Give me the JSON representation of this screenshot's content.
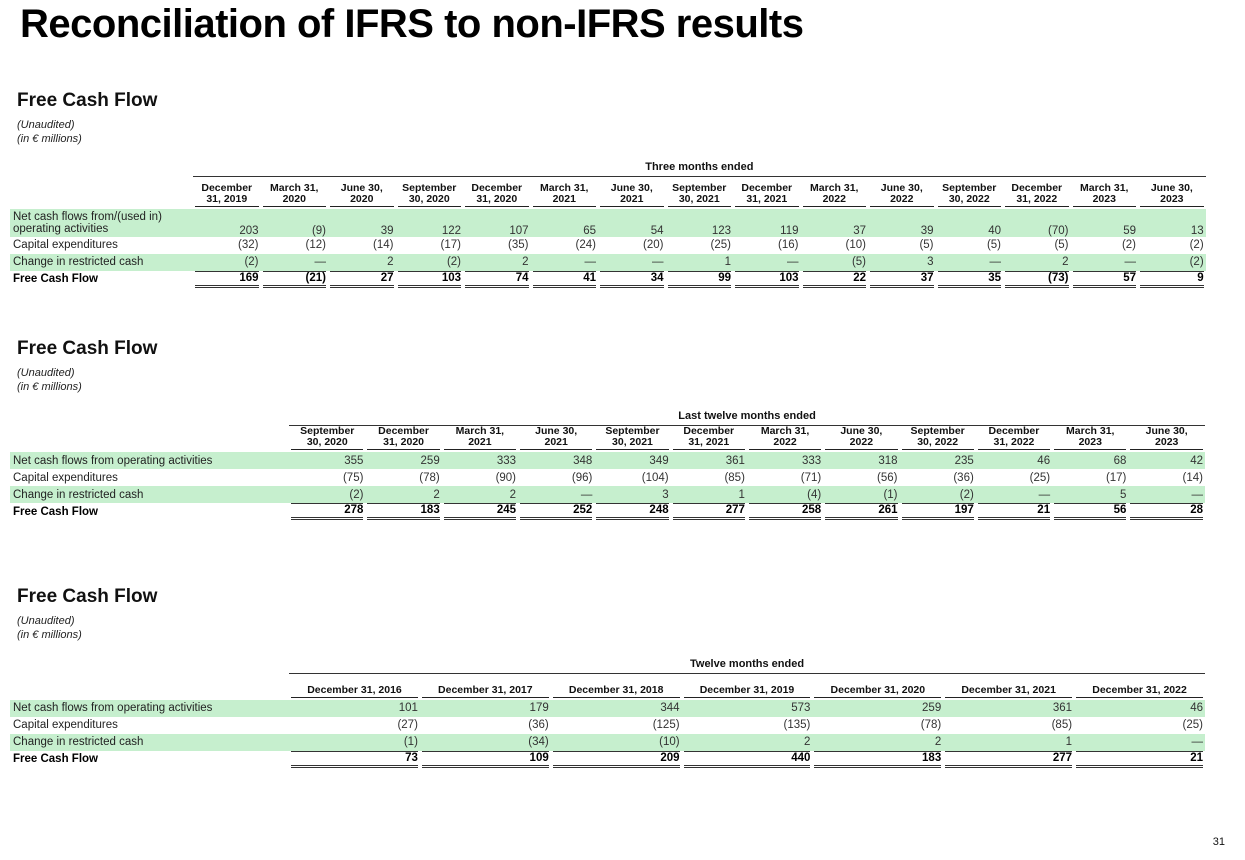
{
  "page_title": "Reconciliation of IFRS to non-IFRS results",
  "page_number": "31",
  "row_labels": [
    "Net cash flows from/(used in) operating activities",
    "Capital expenditures",
    "Change in restricted cash",
    "Free Cash Flow"
  ],
  "sections": [
    {
      "title": "Free Cash Flow",
      "sub1": "(Unaudited)",
      "sub2": "(in € millions)",
      "period_label": "Three months ended",
      "columns": [
        [
          "December",
          "31, 2019"
        ],
        [
          "March 31,",
          "2020"
        ],
        [
          "June 30,",
          "2020"
        ],
        [
          "September",
          "30, 2020"
        ],
        [
          "December",
          "31, 2020"
        ],
        [
          "March 31,",
          "2021"
        ],
        [
          "June 30,",
          "2021"
        ],
        [
          "September",
          "30, 2021"
        ],
        [
          "December",
          "31, 2021"
        ],
        [
          "March 31,",
          "2022"
        ],
        [
          "June 30,",
          "2022"
        ],
        [
          "September",
          "30, 2022"
        ],
        [
          "December",
          "31, 2022"
        ],
        [
          "March 31,",
          "2023"
        ],
        [
          "June 30,",
          "2023"
        ]
      ],
      "rows": [
        {
          "label": "Net cash flows from/(used in) operating activities",
          "values": [
            "203",
            "(9)",
            "39",
            "122",
            "107",
            "65",
            "54",
            "123",
            "119",
            "37",
            "39",
            "40",
            "(70)",
            "59",
            "13"
          ]
        },
        {
          "label": "Capital expenditures",
          "values": [
            "(32)",
            "(12)",
            "(14)",
            "(17)",
            "(35)",
            "(24)",
            "(20)",
            "(25)",
            "(16)",
            "(10)",
            "(5)",
            "(5)",
            "(5)",
            "(2)",
            "(2)"
          ]
        },
        {
          "label": "Change in restricted cash",
          "values": [
            "(2)",
            "—",
            "2",
            "(2)",
            "2",
            "—",
            "—",
            "1",
            "—",
            "(5)",
            "3",
            "—",
            "2",
            "—",
            "(2)"
          ]
        },
        {
          "label": "Free Cash Flow",
          "values": [
            "169",
            "(21)",
            "27",
            "103",
            "74",
            "41",
            "34",
            "99",
            "103",
            "22",
            "37",
            "35",
            "(73)",
            "57",
            "9"
          ]
        }
      ]
    },
    {
      "title": "Free Cash Flow",
      "sub1": "(Unaudited)",
      "sub2": "(in € millions)",
      "period_label": "Last twelve months ended",
      "columns": [
        [
          "September",
          "30, 2020"
        ],
        [
          "December",
          "31, 2020"
        ],
        [
          "March 31,",
          "2021"
        ],
        [
          "June 30,",
          "2021"
        ],
        [
          "September",
          "30, 2021"
        ],
        [
          "December",
          "31, 2021"
        ],
        [
          "March 31,",
          "2022"
        ],
        [
          "June 30,",
          "2022"
        ],
        [
          "September",
          "30, 2022"
        ],
        [
          "December",
          "31, 2022"
        ],
        [
          "March 31,",
          "2023"
        ],
        [
          "June 30,",
          "2023"
        ]
      ],
      "rows": [
        {
          "label": "Net cash flows from operating activities",
          "values": [
            "355",
            "259",
            "333",
            "348",
            "349",
            "361",
            "333",
            "318",
            "235",
            "46",
            "68",
            "42"
          ]
        },
        {
          "label": "Capital expenditures",
          "values": [
            "(75)",
            "(78)",
            "(90)",
            "(96)",
            "(104)",
            "(85)",
            "(71)",
            "(56)",
            "(36)",
            "(25)",
            "(17)",
            "(14)"
          ]
        },
        {
          "label": "Change in restricted cash",
          "values": [
            "(2)",
            "2",
            "2",
            "—",
            "3",
            "1",
            "(4)",
            "(1)",
            "(2)",
            "—",
            "5",
            "—"
          ]
        },
        {
          "label": "Free Cash Flow",
          "values": [
            "278",
            "183",
            "245",
            "252",
            "248",
            "277",
            "258",
            "261",
            "197",
            "21",
            "56",
            "28"
          ]
        }
      ]
    },
    {
      "title": "Free Cash Flow",
      "sub1": "(Unaudited)",
      "sub2": "(in € millions)",
      "period_label": "Twelve months ended",
      "columns": [
        [
          "December 31, 2016"
        ],
        [
          "December 31, 2017"
        ],
        [
          "December 31, 2018"
        ],
        [
          "December 31, 2019"
        ],
        [
          "December 31, 2020"
        ],
        [
          "December 31, 2021"
        ],
        [
          "December 31, 2022"
        ]
      ],
      "rows": [
        {
          "label": "Net cash flows from operating activities",
          "values": [
            "101",
            "179",
            "344",
            "573",
            "259",
            "361",
            "46"
          ]
        },
        {
          "label": "Capital expenditures",
          "values": [
            "(27)",
            "(36)",
            "(125)",
            "(135)",
            "(78)",
            "(85)",
            "(25)"
          ]
        },
        {
          "label": "Change in restricted cash",
          "values": [
            "(1)",
            "(34)",
            "(10)",
            "2",
            "2",
            "1",
            "—"
          ]
        },
        {
          "label": "Free Cash Flow",
          "values": [
            "73",
            "109",
            "209",
            "440",
            "183",
            "277",
            "21"
          ]
        }
      ]
    }
  ]
}
